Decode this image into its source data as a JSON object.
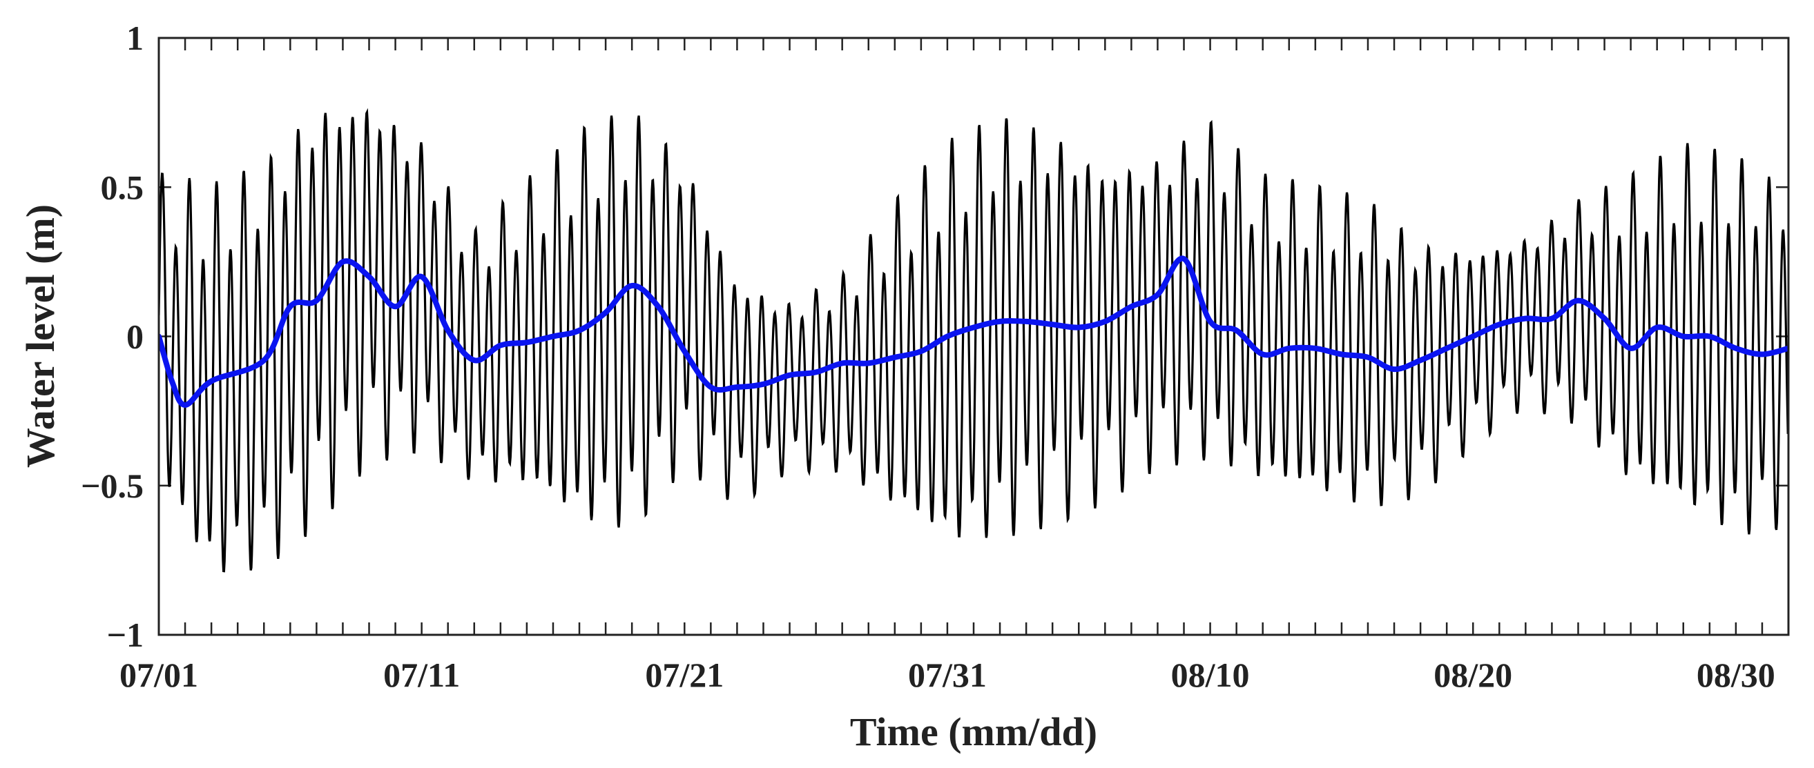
{
  "chart_data": {
    "type": "line",
    "title": "",
    "xlabel": "Time (mm/dd)",
    "ylabel": "Water level (m)",
    "x_unit": "days (mm/dd)",
    "xlim": [
      "07/01",
      "09/01"
    ],
    "ylim": [
      -1,
      1
    ],
    "x_ticks": [
      "07/01",
      "07/11",
      "07/21",
      "07/31",
      "08/10",
      "08/20",
      "08/30"
    ],
    "y_ticks": [
      "1",
      "0.5",
      "0",
      "−0.5",
      "−1"
    ],
    "y_tick_values": [
      1,
      0.5,
      0,
      -0.5,
      -1
    ],
    "grid": false,
    "legend": "none",
    "series": [
      {
        "style": "thin black oscillating line",
        "color": "#000000",
        "x": [
          "07/01",
          "07/03",
          "07/05",
          "07/07",
          "07/09",
          "07/11",
          "07/13",
          "07/15",
          "07/17",
          "07/19",
          "07/21",
          "07/23",
          "07/25",
          "07/27",
          "07/29",
          "07/31",
          "08/02",
          "08/04",
          "08/06",
          "08/08",
          "08/10",
          "08/12",
          "08/14",
          "08/16",
          "08/18",
          "08/20",
          "08/22",
          "08/24",
          "08/26",
          "08/28",
          "08/30",
          "09/01"
        ],
        "mean_level": [
          0.0,
          -0.18,
          -0.1,
          0.1,
          0.22,
          0.15,
          -0.08,
          -0.02,
          0.0,
          0.05,
          0.1,
          -0.17,
          -0.16,
          -0.13,
          -0.09,
          -0.06,
          0.02,
          0.05,
          0.04,
          0.1,
          0.15,
          0.0,
          -0.04,
          -0.07,
          -0.1,
          -0.02,
          0.06,
          0.08,
          0.0,
          0.0,
          -0.05,
          -0.06
        ],
        "amplitude": [
          0.55,
          0.7,
          0.72,
          0.75,
          0.65,
          0.55,
          0.45,
          0.55,
          0.7,
          0.75,
          0.55,
          0.4,
          0.3,
          0.35,
          0.55,
          0.72,
          0.75,
          0.7,
          0.6,
          0.55,
          0.6,
          0.55,
          0.55,
          0.55,
          0.45,
          0.35,
          0.3,
          0.4,
          0.55,
          0.65,
          0.68,
          0.6
        ]
      },
      {
        "style": "thick blue smooth line",
        "color": "#0a14f0",
        "x": [
          "07/01",
          "07/01.5",
          "07/02",
          "07/03",
          "07/05",
          "07/06",
          "07/07",
          "07/08",
          "07/09",
          "07/10",
          "07/11",
          "07/12",
          "07/13",
          "07/14",
          "07/15",
          "07/16",
          "07/17",
          "07/18",
          "07/19",
          "07/20",
          "07/21",
          "07/22",
          "07/23",
          "07/24",
          "07/25",
          "07/26",
          "07/27",
          "07/28",
          "07/29",
          "07/30",
          "07/31",
          "08/01",
          "08/02",
          "08/03",
          "08/04",
          "08/05",
          "08/06",
          "08/07",
          "08/08",
          "08/09",
          "08/10",
          "08/11",
          "08/12",
          "08/13",
          "08/14",
          "08/15",
          "08/16",
          "08/17",
          "08/18",
          "08/19",
          "08/20",
          "08/21",
          "08/22",
          "08/23",
          "08/24",
          "08/25",
          "08/26",
          "08/27",
          "08/28",
          "08/29",
          "08/30",
          "08/31",
          "09/01"
        ],
        "values": [
          0.0,
          -0.15,
          -0.23,
          -0.15,
          -0.08,
          0.1,
          0.12,
          0.25,
          0.2,
          0.1,
          0.2,
          0.02,
          -0.08,
          -0.03,
          -0.02,
          0.0,
          0.02,
          0.08,
          0.17,
          0.1,
          -0.05,
          -0.17,
          -0.17,
          -0.16,
          -0.13,
          -0.12,
          -0.09,
          -0.09,
          -0.07,
          -0.05,
          0.0,
          0.03,
          0.05,
          0.05,
          0.04,
          0.03,
          0.05,
          0.1,
          0.14,
          0.26,
          0.05,
          0.02,
          -0.06,
          -0.04,
          -0.04,
          -0.06,
          -0.07,
          -0.11,
          -0.08,
          -0.04,
          0.0,
          0.04,
          0.06,
          0.06,
          0.12,
          0.06,
          -0.04,
          0.03,
          0.0,
          0.0,
          -0.04,
          -0.06,
          -0.04
        ]
      }
    ]
  }
}
